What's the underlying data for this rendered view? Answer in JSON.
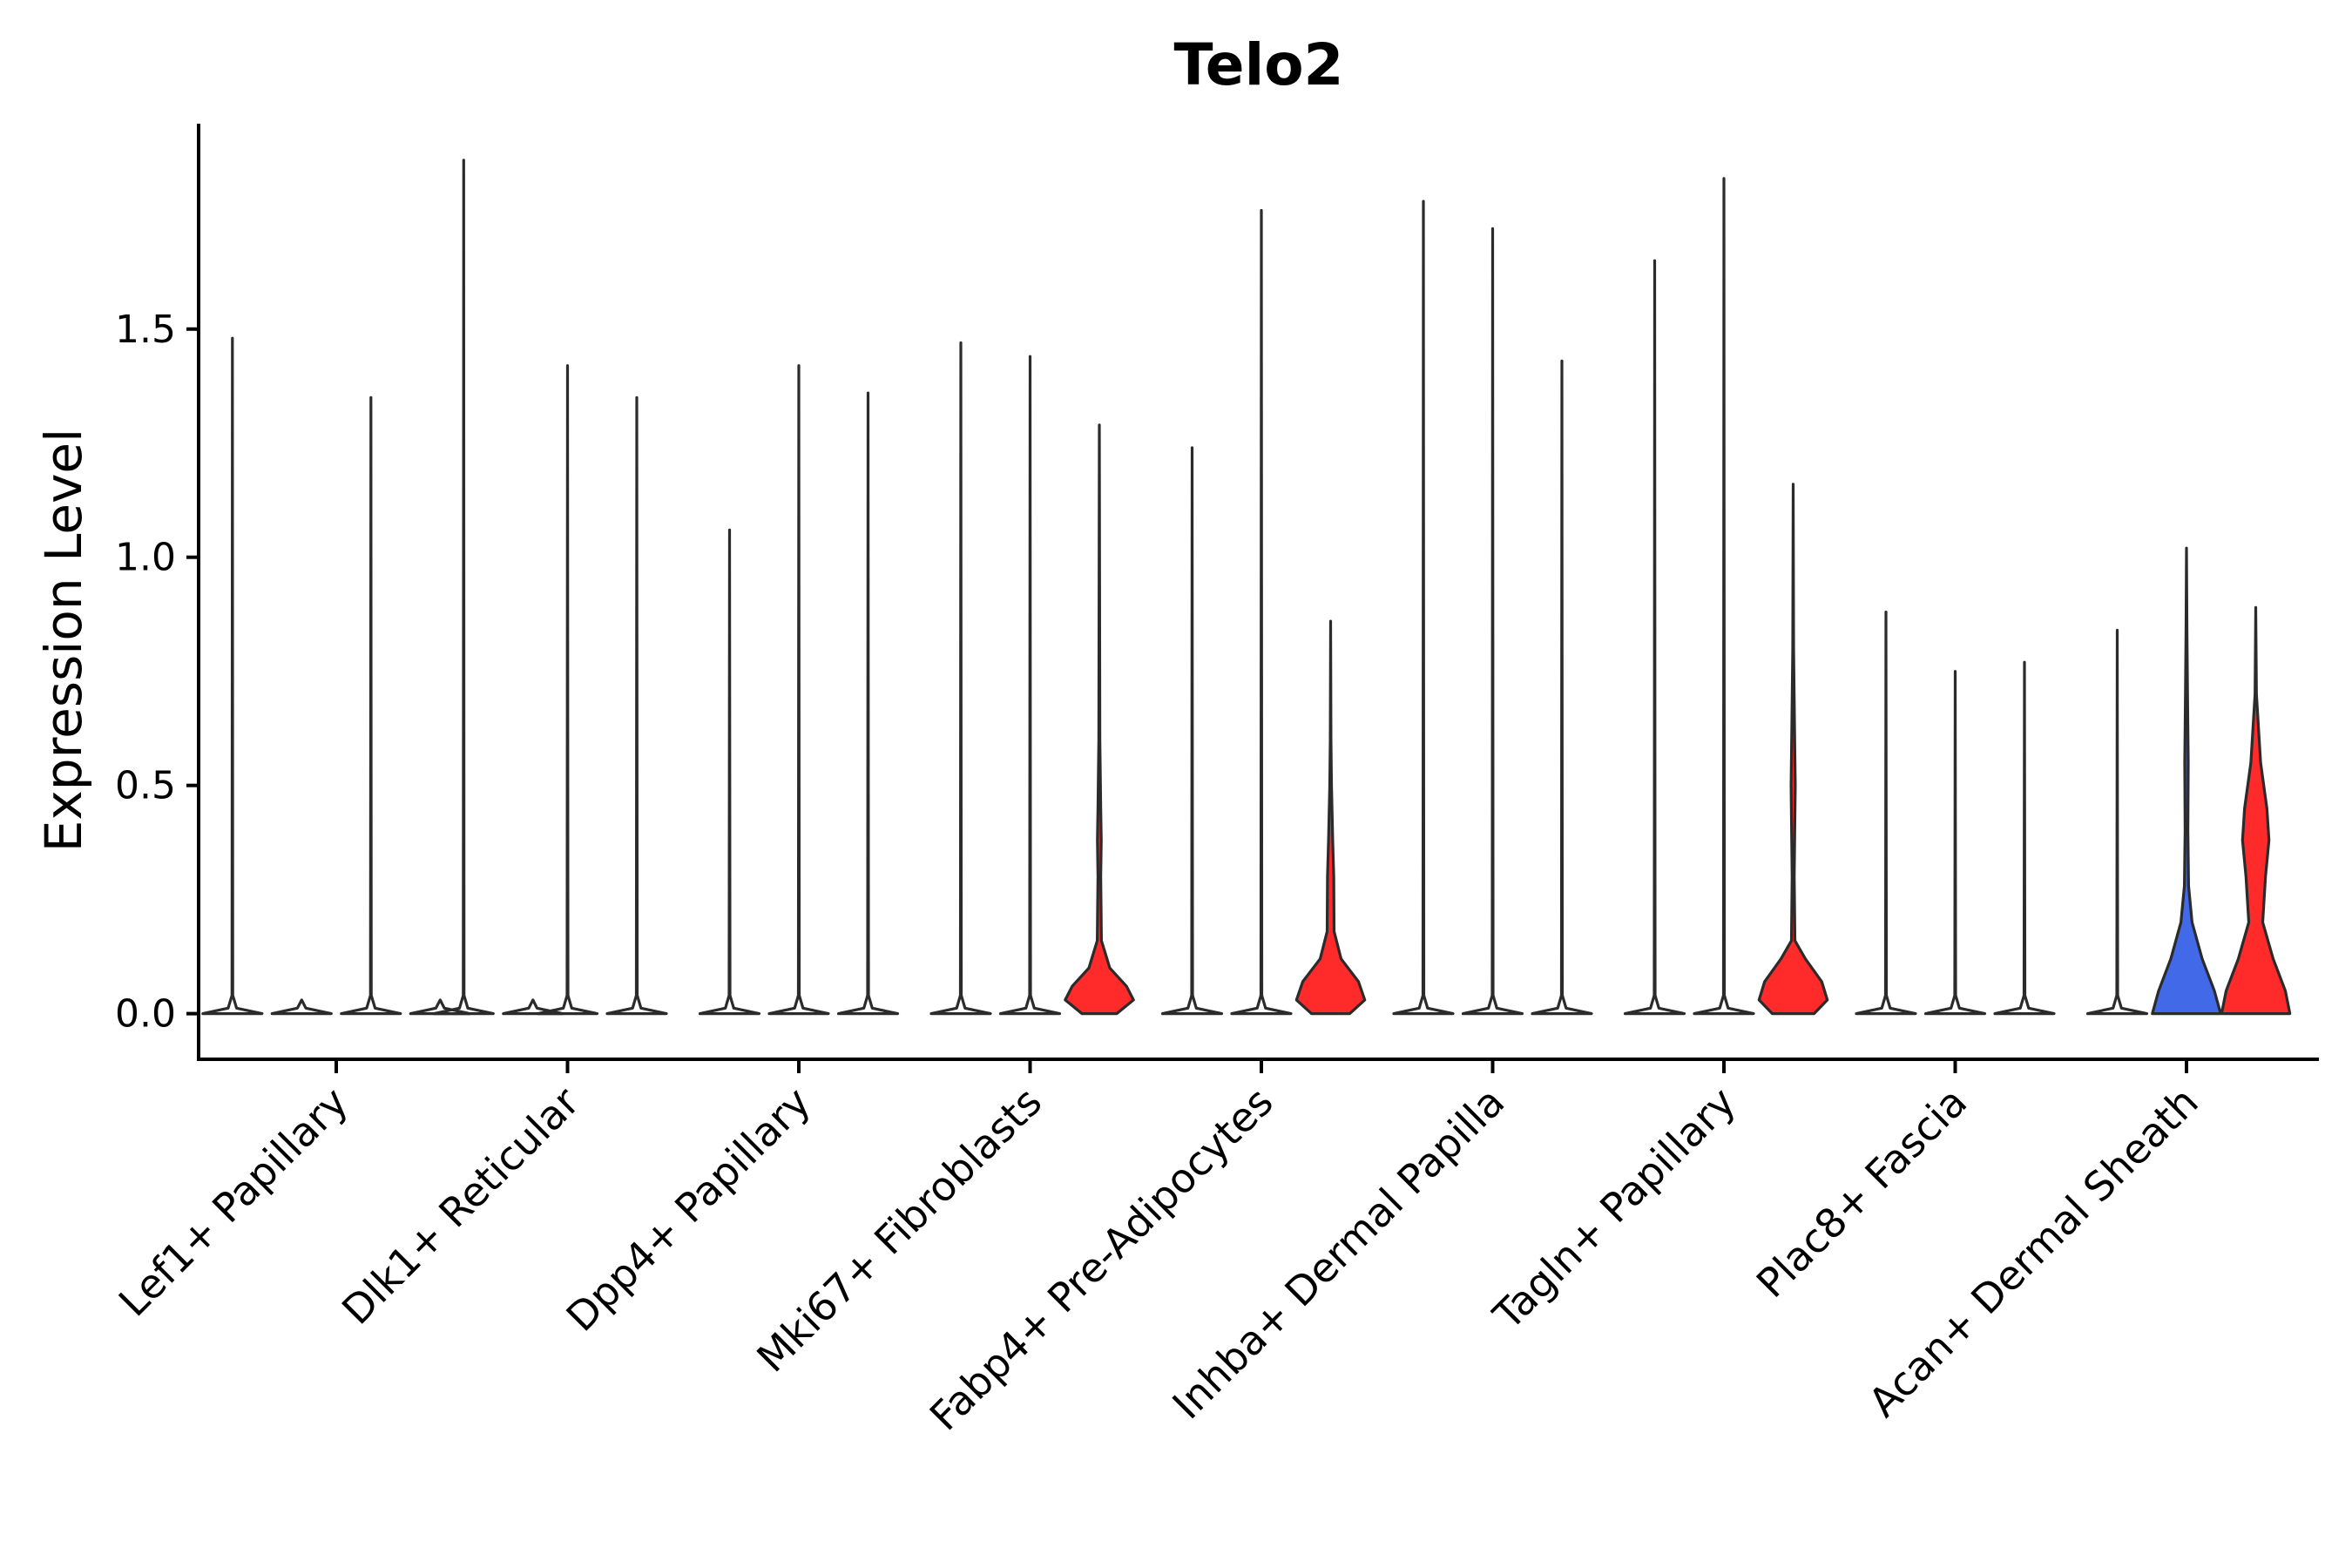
{
  "chart_data": {
    "type": "violin",
    "title": "Telo2",
    "ylabel": "Expression Level",
    "xlabel": "",
    "ylim": [
      -0.1,
      1.95
    ],
    "yticks": [
      "0.0",
      "0.5",
      "1.0",
      "1.5"
    ],
    "categories": [
      "Lef1+ Papillary",
      "Dlk1+ Reticular",
      "Dpp4+ Papillary",
      "Mki67+ Fibroblasts",
      "Fabp4+ Pre-Adipocytes",
      "Inhba+ Dermal Papilla",
      "Tagln+ Papillary",
      "Plac8+ Fascia",
      "Acan+ Dermal Sheath"
    ],
    "colors": {
      "red": "#ff2a2a",
      "blue": "#4169e8",
      "outline": "#2b2b2b"
    },
    "violins": [
      {
        "category": "Lef1+ Papillary",
        "slot": -0.75,
        "max": 1.48,
        "color": "none"
      },
      {
        "category": "Lef1+ Papillary",
        "slot": -0.25,
        "max": 0.0,
        "color": "none"
      },
      {
        "category": "Lef1+ Papillary",
        "slot": 0.25,
        "max": 1.35,
        "color": "none"
      },
      {
        "category": "Lef1+ Papillary",
        "slot": 0.75,
        "max": 0.0,
        "color": "none"
      },
      {
        "category": "Dlk1+ Reticular",
        "slot": -0.75,
        "max": 1.87,
        "color": "none"
      },
      {
        "category": "Dlk1+ Reticular",
        "slot": -0.25,
        "max": 0.0,
        "color": "none"
      },
      {
        "category": "Dlk1+ Reticular",
        "slot": 0.0,
        "max": 1.42,
        "color": "none"
      },
      {
        "category": "Dlk1+ Reticular",
        "slot": 0.5,
        "max": 1.35,
        "color": "none"
      },
      {
        "category": "Dpp4+ Papillary",
        "slot": -0.5,
        "max": 1.06,
        "color": "none"
      },
      {
        "category": "Dpp4+ Papillary",
        "slot": 0.0,
        "max": 1.42,
        "color": "none"
      },
      {
        "category": "Dpp4+ Papillary",
        "slot": 0.5,
        "max": 1.36,
        "color": "none"
      },
      {
        "category": "Mki67+ Fibroblasts",
        "slot": -0.5,
        "max": 1.47,
        "color": "none"
      },
      {
        "category": "Mki67+ Fibroblasts",
        "slot": 0.0,
        "max": 1.44,
        "color": "none"
      },
      {
        "category": "Mki67+ Fibroblasts",
        "slot": 0.5,
        "max": 1.29,
        "color": "red",
        "profile": [
          [
            0.0,
            0.5
          ],
          [
            0.03,
            0.98
          ],
          [
            0.06,
            0.78
          ],
          [
            0.1,
            0.3
          ],
          [
            0.16,
            0.06
          ],
          [
            0.3,
            0.04
          ],
          [
            0.38,
            0.055
          ],
          [
            0.45,
            0.04
          ],
          [
            0.6,
            0.015
          ],
          [
            1.29,
            0.0
          ]
        ]
      },
      {
        "category": "Fabp4+ Pre-Adipocytes",
        "slot": -0.5,
        "max": 1.24,
        "color": "none"
      },
      {
        "category": "Fabp4+ Pre-Adipocytes",
        "slot": 0.0,
        "max": 1.76,
        "color": "none"
      },
      {
        "category": "Fabp4+ Pre-Adipocytes",
        "slot": 0.5,
        "max": 0.86,
        "color": "red",
        "profile": [
          [
            0.0,
            0.55
          ],
          [
            0.03,
            0.98
          ],
          [
            0.07,
            0.8
          ],
          [
            0.12,
            0.3
          ],
          [
            0.18,
            0.1
          ],
          [
            0.3,
            0.09
          ],
          [
            0.38,
            0.06
          ],
          [
            0.5,
            0.025
          ],
          [
            0.6,
            0.01
          ],
          [
            0.86,
            0.0
          ]
        ]
      },
      {
        "category": "Inhba+ Dermal Papilla",
        "slot": -0.5,
        "max": 1.78,
        "color": "none"
      },
      {
        "category": "Inhba+ Dermal Papilla",
        "slot": 0.0,
        "max": 1.72,
        "color": "none"
      },
      {
        "category": "Inhba+ Dermal Papilla",
        "slot": 0.5,
        "max": 1.43,
        "color": "none"
      },
      {
        "category": "Tagln+ Papillary",
        "slot": -0.5,
        "max": 1.65,
        "color": "none"
      },
      {
        "category": "Tagln+ Papillary",
        "slot": 0.0,
        "max": 1.83,
        "color": "none"
      },
      {
        "category": "Tagln+ Papillary",
        "slot": 0.5,
        "max": 1.16,
        "color": "red",
        "profile": [
          [
            0.0,
            0.6
          ],
          [
            0.03,
            0.98
          ],
          [
            0.07,
            0.82
          ],
          [
            0.12,
            0.35
          ],
          [
            0.16,
            0.05
          ],
          [
            0.3,
            0.03
          ],
          [
            0.5,
            0.06
          ],
          [
            0.62,
            0.04
          ],
          [
            0.8,
            0.012
          ],
          [
            1.16,
            0.0
          ]
        ]
      },
      {
        "category": "Plac8+ Fascia",
        "slot": -0.5,
        "max": 0.88,
        "color": "none"
      },
      {
        "category": "Plac8+ Fascia",
        "slot": 0.0,
        "max": 0.75,
        "color": "none"
      },
      {
        "category": "Plac8+ Fascia",
        "slot": 0.5,
        "max": 0.77,
        "color": "none"
      },
      {
        "category": "Acan+ Dermal Sheath",
        "slot": -0.5,
        "max": 0.84,
        "color": "none"
      },
      {
        "category": "Acan+ Dermal Sheath",
        "slot": 0.0,
        "max": 1.02,
        "color": "blue",
        "profile": [
          [
            0.0,
            0.98
          ],
          [
            0.05,
            0.8
          ],
          [
            0.12,
            0.45
          ],
          [
            0.2,
            0.16
          ],
          [
            0.28,
            0.06
          ],
          [
            0.4,
            0.04
          ],
          [
            0.55,
            0.05
          ],
          [
            0.7,
            0.03
          ],
          [
            0.85,
            0.012
          ],
          [
            1.02,
            0.0
          ]
        ]
      },
      {
        "category": "Acan+ Dermal Sheath",
        "slot": 0.5,
        "max": 0.89,
        "color": "red",
        "profile": [
          [
            0.0,
            0.98
          ],
          [
            0.05,
            0.85
          ],
          [
            0.12,
            0.5
          ],
          [
            0.2,
            0.2
          ],
          [
            0.3,
            0.28
          ],
          [
            0.38,
            0.38
          ],
          [
            0.45,
            0.32
          ],
          [
            0.55,
            0.14
          ],
          [
            0.7,
            0.02
          ],
          [
            0.89,
            0.0
          ]
        ]
      }
    ]
  }
}
